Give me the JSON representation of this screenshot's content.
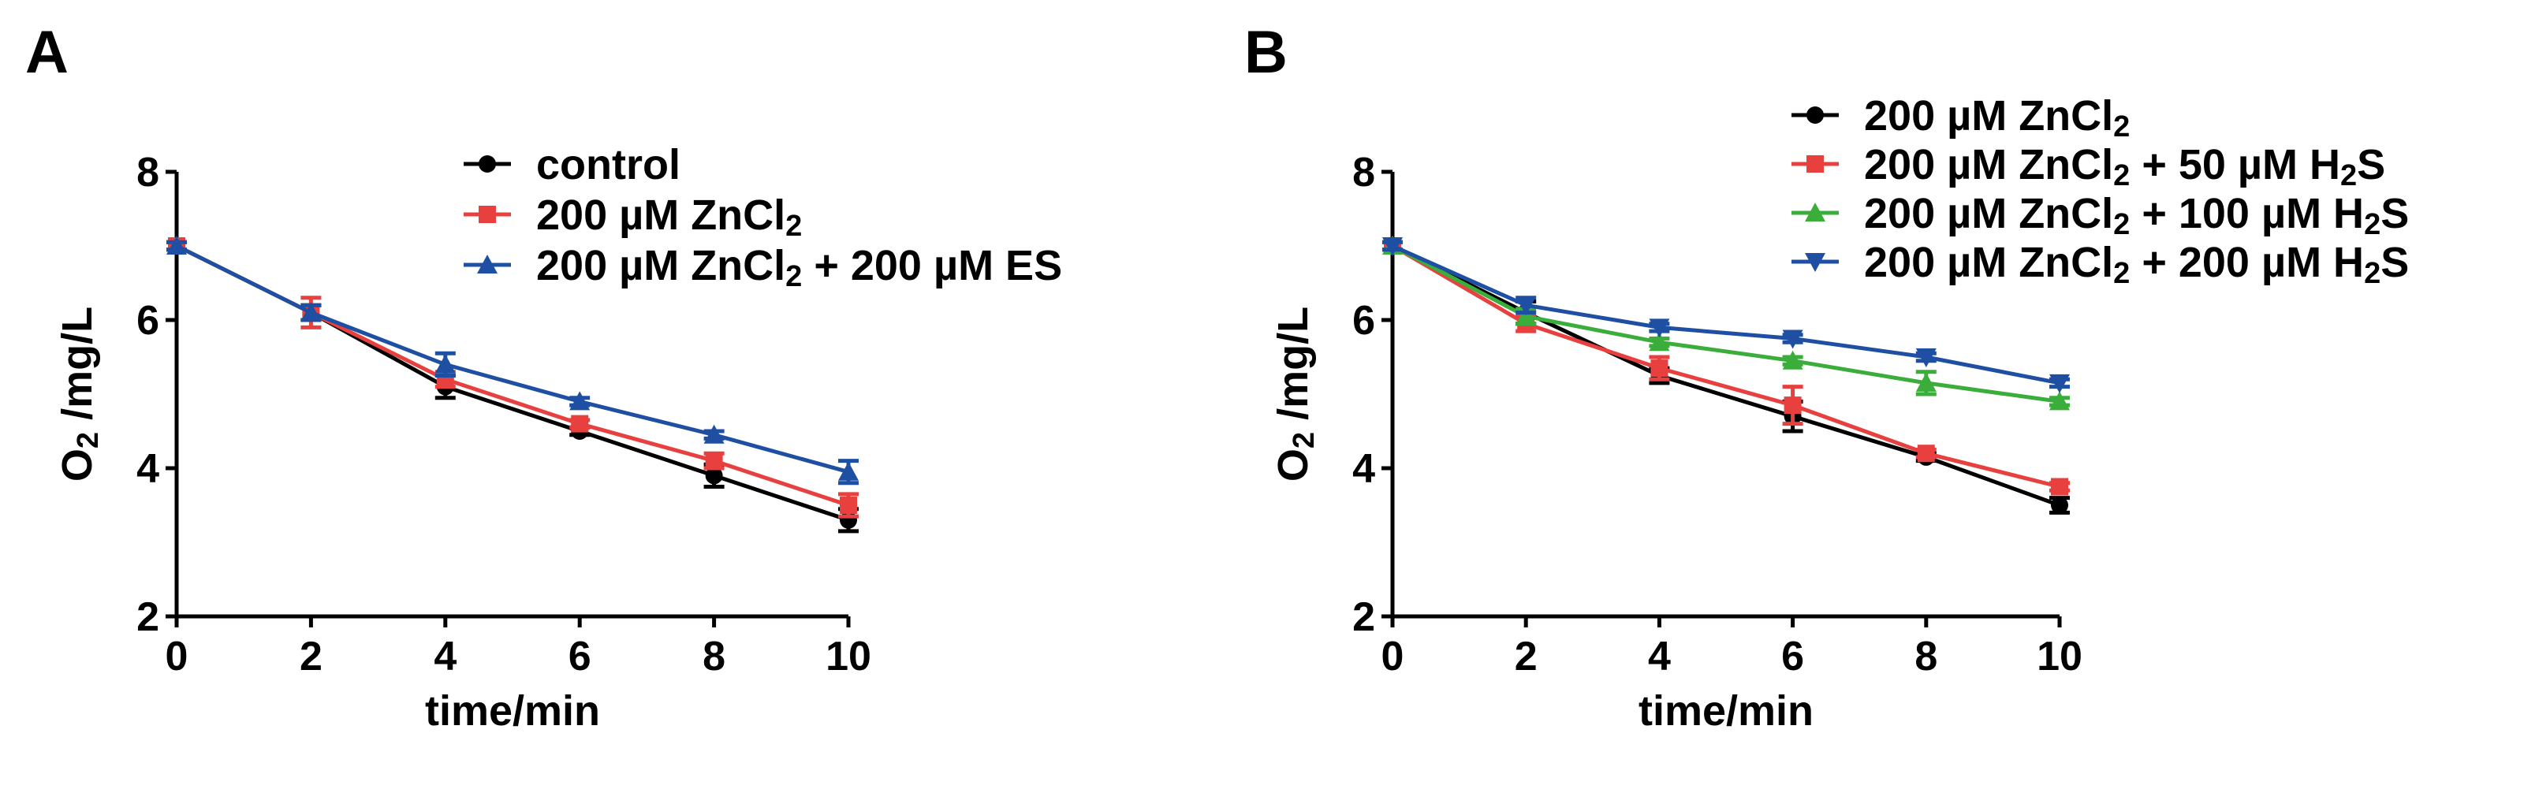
{
  "chart_data": [
    {
      "panel": "A",
      "type": "line",
      "xlabel": "time/min",
      "ylabel": "O2 /mg/L",
      "xlim": [
        0,
        10
      ],
      "ylim": [
        2,
        8
      ],
      "xticks": [
        0,
        2,
        4,
        6,
        8,
        10
      ],
      "yticks": [
        2,
        4,
        6,
        8
      ],
      "legend_position": "top-right",
      "x": [
        0,
        2,
        4,
        6,
        8,
        10
      ],
      "series": [
        {
          "name": "control",
          "parts": [
            "control"
          ],
          "color": "#000000",
          "marker": "circle",
          "values": [
            7.0,
            6.1,
            5.1,
            4.5,
            3.9,
            3.3
          ],
          "errors": [
            0.05,
            0.1,
            0.15,
            0.05,
            0.15,
            0.15
          ]
        },
        {
          "name": "200 µM ZnCl2",
          "parts": [
            "200 µM ZnCl",
            "2"
          ],
          "color": "#e8403e",
          "marker": "square",
          "values": [
            7.0,
            6.1,
            5.2,
            4.6,
            4.1,
            3.5
          ],
          "errors": [
            0.05,
            0.2,
            0.1,
            0.05,
            0.1,
            0.15
          ]
        },
        {
          "name": "200 µM ZnCl2 + 200 µM ES",
          "parts": [
            "200 µM ZnCl",
            "2",
            " + 200 µM ES"
          ],
          "color": "#1f4fa3",
          "marker": "triangle-up",
          "values": [
            7.0,
            6.1,
            5.4,
            4.9,
            4.45,
            3.95
          ],
          "errors": [
            0.05,
            0.1,
            0.15,
            0.05,
            0.05,
            0.15
          ]
        }
      ]
    },
    {
      "panel": "B",
      "type": "line",
      "xlabel": "time/min",
      "ylabel": "O2 /mg/L",
      "xlim": [
        0,
        10
      ],
      "ylim": [
        2,
        8
      ],
      "xticks": [
        0,
        2,
        4,
        6,
        8,
        10
      ],
      "yticks": [
        2,
        4,
        6,
        8
      ],
      "legend_position": "top-right",
      "x": [
        0,
        2,
        4,
        6,
        8,
        10
      ],
      "series": [
        {
          "name": "200 µM ZnCl2",
          "parts": [
            "200 µM ZnCl",
            "2"
          ],
          "color": "#000000",
          "marker": "circle",
          "values": [
            7.0,
            6.1,
            5.25,
            4.7,
            4.15,
            3.5
          ],
          "errors": [
            0.05,
            0.15,
            0.1,
            0.2,
            0.05,
            0.1
          ]
        },
        {
          "name": "200 µM ZnCl2 + 50 µM H2S",
          "parts": [
            "200 µM ZnCl",
            "2",
            " + 50 µM H",
            "2",
            "S"
          ],
          "color": "#e8403e",
          "marker": "square",
          "values": [
            7.0,
            5.95,
            5.35,
            4.85,
            4.2,
            3.75
          ],
          "errors": [
            0.05,
            0.1,
            0.15,
            0.25,
            0.05,
            0.05
          ]
        },
        {
          "name": "200 µM ZnCl2 + 100 µM H2S",
          "parts": [
            "200 µM ZnCl",
            "2",
            " + 100 µM H",
            "2",
            "S"
          ],
          "color": "#3aad3a",
          "marker": "triangle-up",
          "values": [
            7.0,
            6.05,
            5.7,
            5.45,
            5.15,
            4.9
          ],
          "errors": [
            0.05,
            0.1,
            0.05,
            0.05,
            0.15,
            0.05
          ]
        },
        {
          "name": "200 µM ZnCl2 + 200 µM H2S",
          "parts": [
            "200 µM ZnCl",
            "2",
            " + 200 µM H",
            "2",
            "S"
          ],
          "color": "#1f4fa3",
          "marker": "triangle-down",
          "values": [
            7.0,
            6.2,
            5.9,
            5.75,
            5.5,
            5.15
          ],
          "errors": [
            0.05,
            0.1,
            0.05,
            0.05,
            0.05,
            0.05
          ]
        }
      ]
    }
  ]
}
